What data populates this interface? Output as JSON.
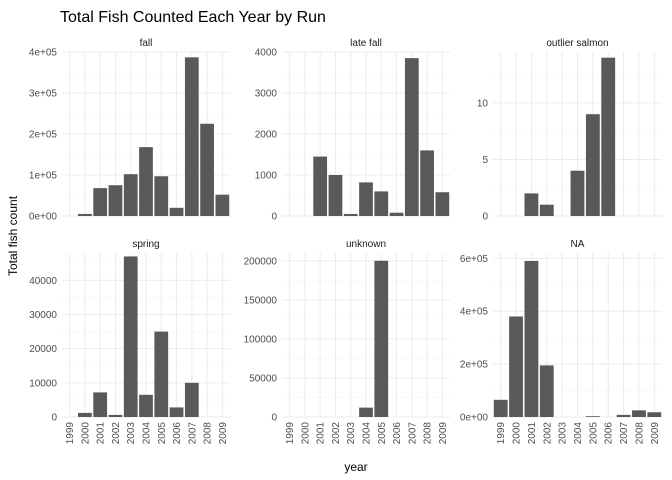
{
  "chart_data": {
    "type": "bar",
    "title": "Total Fish Counted Each Year by Run",
    "xlabel": "year",
    "ylabel": "Total fish count",
    "categories": [
      "1999",
      "2000",
      "2001",
      "2002",
      "2003",
      "2004",
      "2005",
      "2006",
      "2007",
      "2008",
      "2009"
    ],
    "bar_color": "#595959",
    "facet_layout": "2 rows x 3 columns, free y scales, shared x axis",
    "grid": true,
    "panels": [
      {
        "name": "fall",
        "ylim": [
          0,
          400000
        ],
        "yticks": [
          0,
          100000,
          200000,
          300000,
          400000
        ],
        "ytick_labels": [
          "0e+00",
          "1e+05",
          "2e+05",
          "3e+05",
          "4e+05"
        ],
        "values": [
          null,
          5000,
          68000,
          75000,
          102000,
          168000,
          97000,
          20000,
          387000,
          225000,
          52000
        ]
      },
      {
        "name": "late fall",
        "ylim": [
          0,
          4000
        ],
        "yticks": [
          0,
          1000,
          2000,
          3000,
          4000
        ],
        "ytick_labels": [
          "0",
          "1000",
          "2000",
          "3000",
          "4000"
        ],
        "values": [
          null,
          null,
          1450,
          1000,
          50,
          820,
          600,
          80,
          3850,
          1600,
          580
        ]
      },
      {
        "name": "outlier salmon",
        "ylim": [
          0,
          14.5
        ],
        "yticks": [
          0,
          5,
          10
        ],
        "ytick_labels": [
          "0",
          "5",
          "10"
        ],
        "values": [
          null,
          null,
          2,
          1,
          null,
          4,
          9,
          14,
          null,
          null,
          null
        ]
      },
      {
        "name": "spring",
        "ylim": [
          0,
          48000
        ],
        "yticks": [
          0,
          10000,
          20000,
          30000,
          40000
        ],
        "ytick_labels": [
          "0",
          "10000",
          "20000",
          "30000",
          "40000"
        ],
        "values": [
          null,
          1200,
          7200,
          600,
          47000,
          6500,
          25000,
          2800,
          10000,
          null,
          null
        ]
      },
      {
        "name": "unknown",
        "ylim": [
          0,
          210000
        ],
        "yticks": [
          0,
          50000,
          100000,
          150000,
          200000
        ],
        "ytick_labels": [
          "0",
          "50000",
          "100000",
          "150000",
          "200000"
        ],
        "values": [
          null,
          null,
          null,
          null,
          null,
          12000,
          200000,
          null,
          null,
          null,
          null
        ]
      },
      {
        "name": "NA",
        "ylim": [
          0,
          620000
        ],
        "yticks": [
          0,
          200000,
          400000,
          600000
        ],
        "ytick_labels": [
          "0e+00",
          "2e+05",
          "4e+05",
          "6e+05"
        ],
        "values": [
          65000,
          380000,
          590000,
          195000,
          null,
          null,
          3000,
          null,
          8000,
          25000,
          18000
        ]
      }
    ]
  }
}
